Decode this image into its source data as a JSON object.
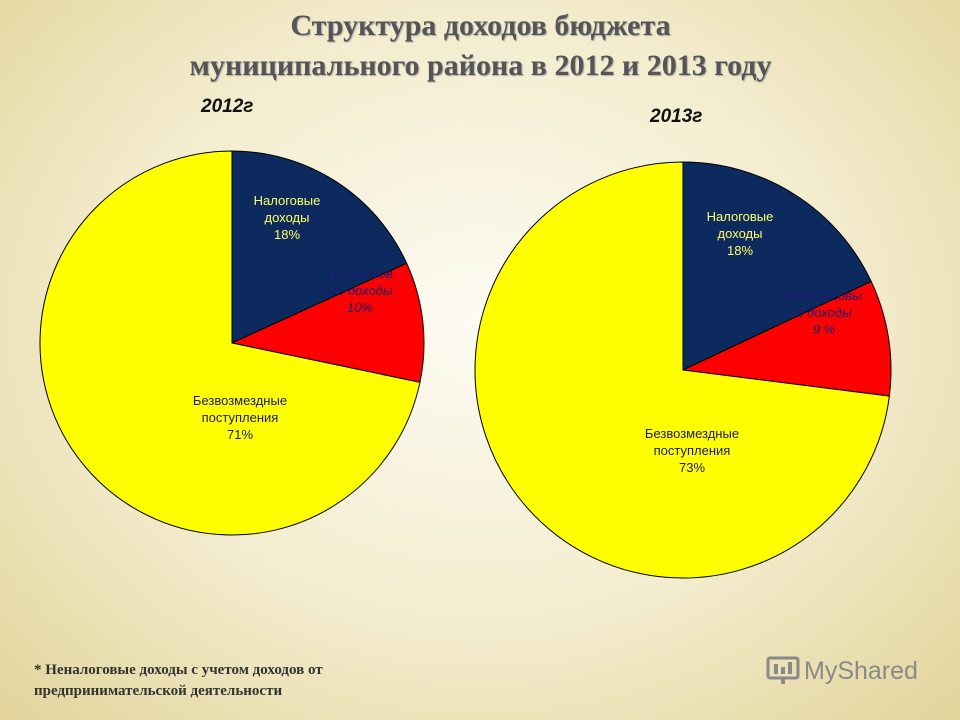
{
  "title_line1": "Структура доходов бюджета",
  "title_line2": "муниципального района в 2012 и 2013 году",
  "footnote_line1": "* Неналоговые доходы с учетом доходов от",
  "footnote_line2": "предпринимательской деятельности",
  "watermark": "MyShared",
  "chart_data": [
    {
      "type": "pie",
      "title": "2012г",
      "slices": [
        {
          "label": [
            "Налоговые",
            "доходы",
            "18%"
          ],
          "value": 18,
          "color": "#0d2a5e",
          "text_color": "#ffff66",
          "italic": false
        },
        {
          "label": [
            "Неналогов",
            "ые доходы",
            "10%"
          ],
          "value": 10,
          "color": "#ff0000",
          "text_color": "#1a1a6e",
          "italic": true
        },
        {
          "label": [
            "Безвозмездные",
            "поступления",
            "71%"
          ],
          "value": 71,
          "color": "#ffff00",
          "text_color": "#1a1a6e",
          "italic": false
        }
      ]
    },
    {
      "type": "pie",
      "title": "2013г",
      "slices": [
        {
          "label": [
            "Налоговые",
            "доходы",
            "18%"
          ],
          "value": 18,
          "color": "#0d2a5e",
          "text_color": "#ffff66",
          "italic": false
        },
        {
          "label": [
            "Неналоговы",
            "е доходы",
            "9 %"
          ],
          "value": 9,
          "color": "#ff0000",
          "text_color": "#1a1a6e",
          "italic": true
        },
        {
          "label": [
            "Безвозмездные",
            "поступления",
            "73%"
          ],
          "value": 73,
          "color": "#ffff00",
          "text_color": "#1a1a6e",
          "italic": false
        }
      ]
    }
  ]
}
